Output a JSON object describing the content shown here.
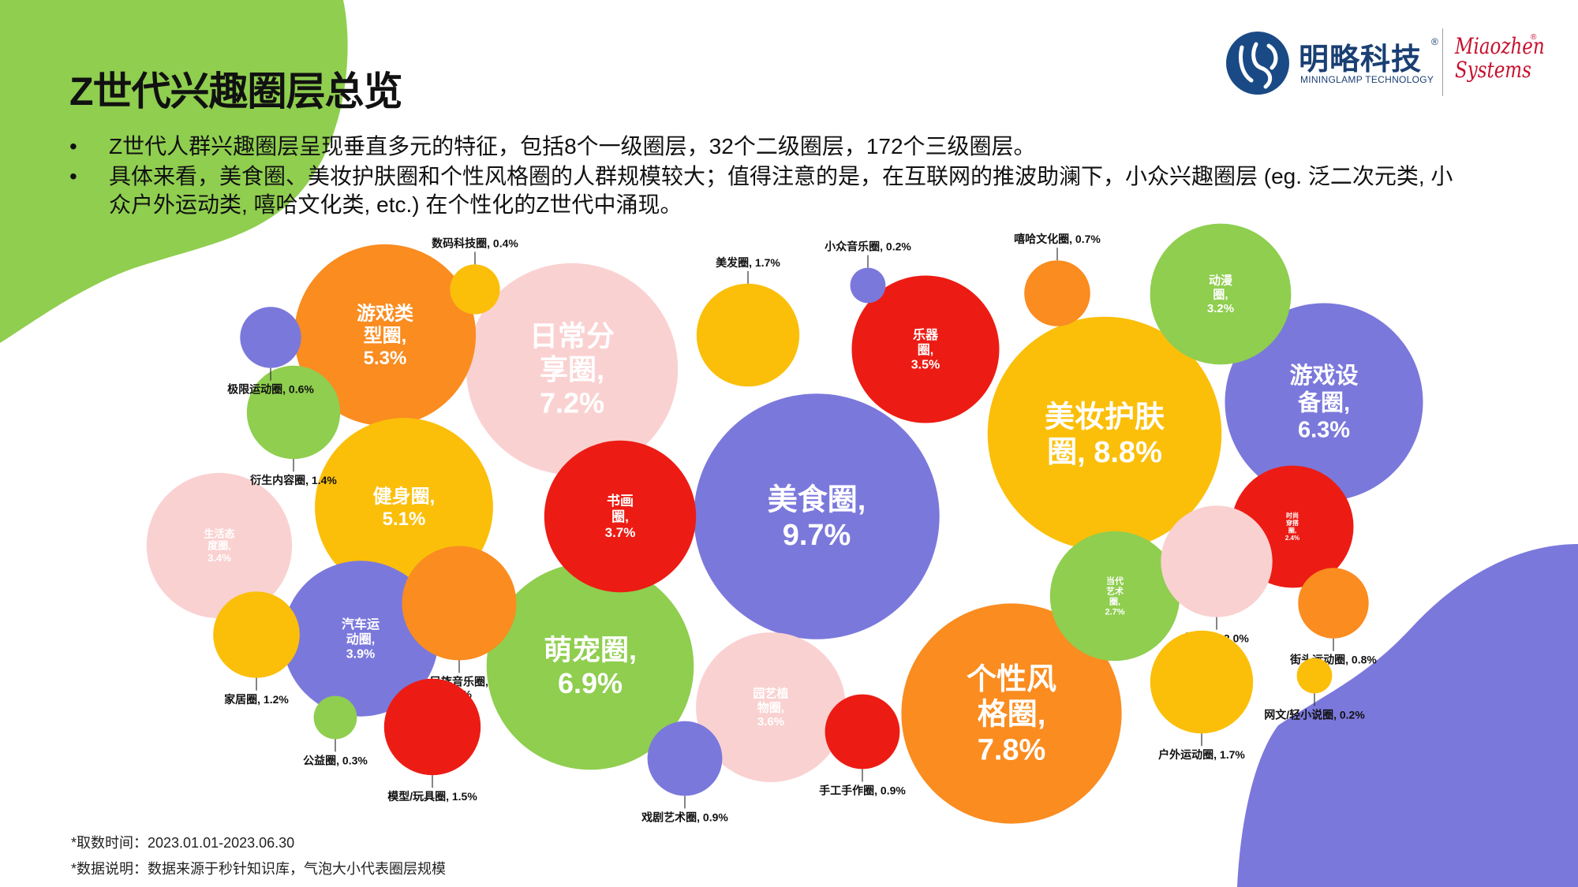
{
  "page": {
    "title": "Z世代兴趣圈层总览",
    "bullets": [
      "Z世代人群兴趣圈层呈现垂直多元的特征，包括8个一级圈层，32个二级圈层，172个三级圈层。",
      "具体来看，美食圈、美妆护肤圈和个性风格圈的人群规模较大；值得注意的是，在互联网的推波助澜下，小众兴趣圈层 (eg. 泛二次元类, 小众户外运动类, 嘻哈文化类, etc.) 在个性化的Z世代中涌现。"
    ],
    "footnotes": [
      "*取数时间：2023.01.01-2023.06.30",
      "*数据说明：数据来源于秒针知识库，气泡大小代表圈层规模"
    ]
  },
  "logo": {
    "cn": "明略科技",
    "reg": "®",
    "en": "MININGLAMP TECHNOLOGY",
    "mz_line1": "Miaozhen",
    "mz_line2": "Systems",
    "mz_reg": "®"
  },
  "colors": {
    "green": "#8fce4f",
    "purple": "#7b78dc",
    "orange": "#fa8c20",
    "yellow": "#fbbf0a",
    "pink": "#fad1d1",
    "red": "#ec1c14"
  },
  "chart_data": {
    "type": "bubble",
    "measure": "圈层规模",
    "unit": "%",
    "points": [
      {
        "label": "美食圈, 9.7%",
        "name": "美食圈",
        "value": 9.7,
        "color": "purple"
      },
      {
        "label": "美妆护肤圈, 8.8%",
        "name": "美妆护肤圈",
        "value": 8.8,
        "color": "yellow"
      },
      {
        "label": "个性风格圈, 7.8%",
        "name": "个性风格圈",
        "value": 7.8,
        "color": "orange"
      },
      {
        "label": "日常分享圈, 7.2%",
        "name": "日常分享圈",
        "value": 7.2,
        "color": "pink"
      },
      {
        "label": "萌宠圈, 6.9%",
        "name": "萌宠圈",
        "value": 6.9,
        "color": "green"
      },
      {
        "label": "游戏设备圈, 6.3%",
        "name": "游戏设备圈",
        "value": 6.3,
        "color": "purple"
      },
      {
        "label": "游戏类型圈, 5.3%",
        "name": "游戏类型圈",
        "value": 5.3,
        "color": "orange"
      },
      {
        "label": "健身圈, 5.1%",
        "name": "健身圈",
        "value": 5.1,
        "color": "yellow"
      },
      {
        "label": "汽车运动圈, 3.9%",
        "name": "汽车运动圈",
        "value": 3.9,
        "color": "purple"
      },
      {
        "label": "书画圈, 3.7%",
        "name": "书画圈",
        "value": 3.7,
        "color": "red"
      },
      {
        "label": "园艺植物圈, 3.6%",
        "name": "园艺植物圈",
        "value": 3.6,
        "color": "pink"
      },
      {
        "label": "乐器圈, 3.5%",
        "name": "乐器圈",
        "value": 3.5,
        "color": "red"
      },
      {
        "label": "生活态度圈, 3.4%",
        "name": "生活态度圈",
        "value": 3.4,
        "color": "pink"
      },
      {
        "label": "动漫圈, 3.2%",
        "name": "动漫圈",
        "value": 3.2,
        "color": "green"
      },
      {
        "label": "当代艺术圈, 2.7%",
        "name": "当代艺术圈",
        "value": 2.7,
        "color": "green"
      },
      {
        "label": "时尚穿搭圈, 2.4%",
        "name": "时尚穿搭圈",
        "value": 2.4,
        "color": "red"
      },
      {
        "label": "民族音乐圈, 2.1%",
        "name": "民族音乐圈",
        "value": 2.1,
        "color": "orange"
      },
      {
        "label": "旅游圈, 2.0%",
        "name": "旅游圈",
        "value": 2.0,
        "color": "pink"
      },
      {
        "label": "美发圈, 1.7%",
        "name": "美发圈",
        "value": 1.7,
        "color": "yellow"
      },
      {
        "label": "户外运动圈, 1.7%",
        "name": "户外运动圈",
        "value": 1.7,
        "color": "yellow"
      },
      {
        "label": "模型/玩具圈, 1.5%",
        "name": "模型/玩具圈",
        "value": 1.5,
        "color": "red"
      },
      {
        "label": "衍生内容圈, 1.4%",
        "name": "衍生内容圈",
        "value": 1.4,
        "color": "green"
      },
      {
        "label": "家居圈, 1.2%",
        "name": "家居圈",
        "value": 1.2,
        "color": "yellow"
      },
      {
        "label": "戏剧艺术圈, 0.9%",
        "name": "戏剧艺术圈",
        "value": 0.9,
        "color": "purple"
      },
      {
        "label": "手工手作圈, 0.9%",
        "name": "手工手作圈",
        "value": 0.9,
        "color": "red"
      },
      {
        "label": "街头运动圈, 0.8%",
        "name": "街头运动圈",
        "value": 0.8,
        "color": "orange"
      },
      {
        "label": "嘻哈文化圈, 0.7%",
        "name": "嘻哈文化圈",
        "value": 0.7,
        "color": "orange"
      },
      {
        "label": "极限运动圈, 0.6%",
        "name": "极限运动圈",
        "value": 0.6,
        "color": "purple"
      },
      {
        "label": "数码科技圈, 0.4%",
        "name": "数码科技圈",
        "value": 0.4,
        "color": "yellow"
      },
      {
        "label": "公益圈, 0.3%",
        "name": "公益圈",
        "value": 0.3,
        "color": "green"
      },
      {
        "label": "小众音乐圈, 0.2%",
        "name": "小众音乐圈",
        "value": 0.2,
        "color": "purple"
      },
      {
        "label": "网文/轻小说圈, 0.2%",
        "name": "网文/轻小说圈",
        "value": 0.2,
        "color": "yellow"
      }
    ]
  }
}
